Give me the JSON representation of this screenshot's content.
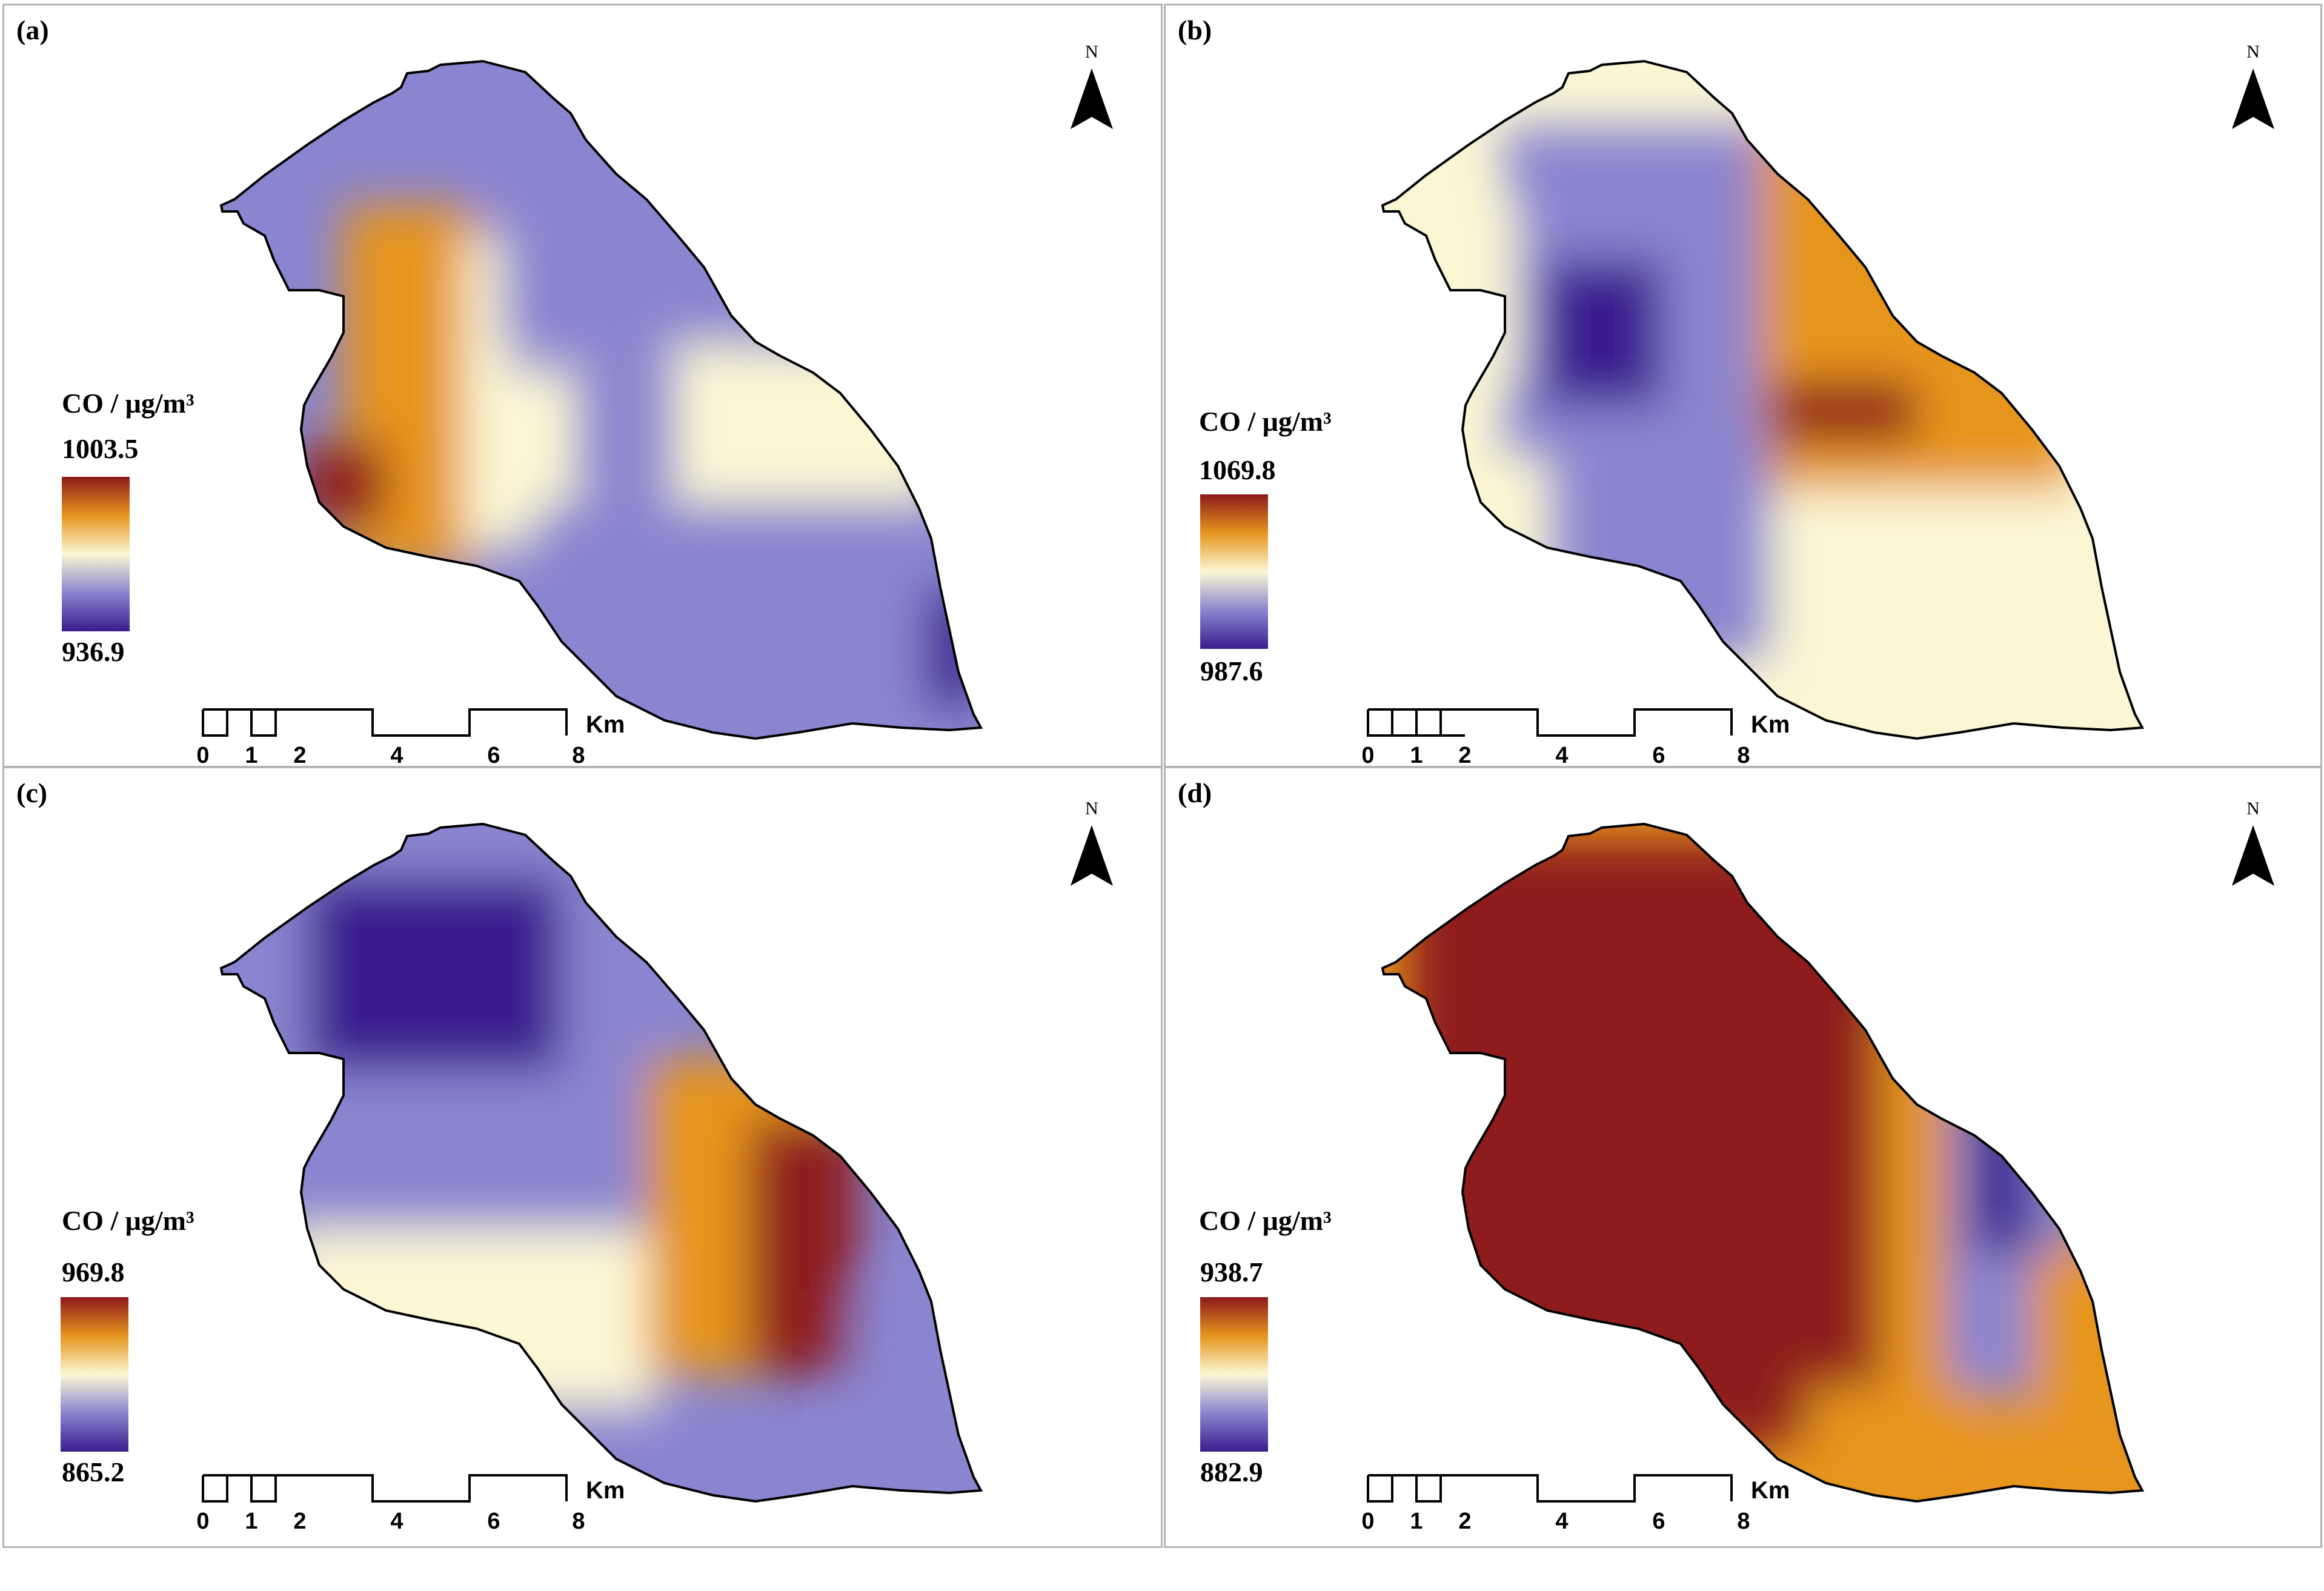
{
  "figure": {
    "panels": [
      {
        "label": "(a)",
        "north_label": "N",
        "legend": {
          "title": "CO / μg/m³",
          "max": "1003.5",
          "min": "936.9"
        },
        "scale": {
          "ticks": [
            "0",
            "1",
            "2",
            "4",
            "6",
            "8"
          ],
          "unit": "Km"
        }
      },
      {
        "label": "(b)",
        "north_label": "N",
        "legend": {
          "title": "CO / μg/m³",
          "max": "1069.8",
          "min": "987.6"
        },
        "scale": {
          "ticks": [
            "0",
            "1",
            "2",
            "4",
            "6",
            "8"
          ],
          "unit": "Km"
        }
      },
      {
        "label": "(c)",
        "north_label": "N",
        "legend": {
          "title": "CO / μg/m³",
          "max": "969.8",
          "min": "865.2"
        },
        "scale": {
          "ticks": [
            "0",
            "1",
            "2",
            "4",
            "6",
            "8"
          ],
          "unit": "Km"
        }
      },
      {
        "label": "(d)",
        "north_label": "N",
        "legend": {
          "title": "CO / μg/m³",
          "max": "938.7",
          "min": "882.9"
        },
        "scale": {
          "ticks": [
            "0",
            "1",
            "2",
            "4",
            "6",
            "8"
          ],
          "unit": "Km"
        }
      }
    ]
  },
  "colors": {
    "high": "#8e1a1a",
    "mid_high": "#e6951e",
    "mid": "#fbf7d4",
    "mid_low": "#8a85d0",
    "low": "#3b1c8e",
    "outline": "#000000",
    "frame": "#b5b5b5"
  }
}
